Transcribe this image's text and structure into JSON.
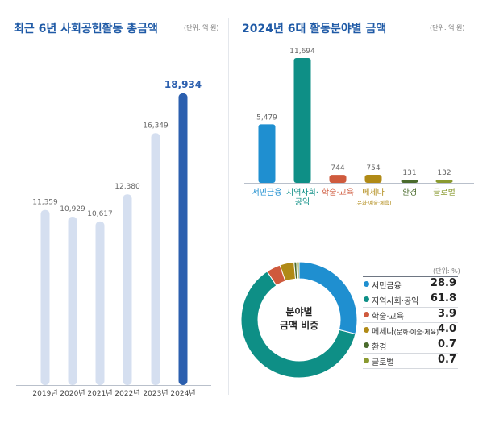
{
  "left": {
    "title": "최근 6년 사회공헌활동 총금액",
    "unit": "(단위: 억 원)"
  },
  "right": {
    "title": "2024년 6대 활동분야별 금액",
    "unit": "(단위: 억 원)"
  },
  "donut": {
    "center_line1": "분야별",
    "center_line2": "금액 비중",
    "unit": "(단위: %)"
  },
  "colors": {
    "title": "#1f5aa6",
    "pale_bar": "#d5dff0",
    "highlight_bar": "#2b5faf",
    "seomin": "#1f8fd0",
    "jiyeok": "#0e8f86",
    "haksul": "#cf5a3d",
    "mesena": "#b08a16",
    "hwangyeong": "#4a6b2c",
    "geulobeol": "#8a9a30"
  },
  "chart_data": [
    {
      "type": "bar",
      "title": "최근 6년 사회공헌활동 총금액",
      "categories": [
        "2019년",
        "2020년",
        "2021년",
        "2022년",
        "2023년",
        "2024년"
      ],
      "values": [
        11359,
        10929,
        10617,
        12380,
        16349,
        18934
      ],
      "value_labels": [
        "11,359",
        "10,929",
        "10,617",
        "12,380",
        "16,349",
        "18,934"
      ],
      "ylim": [
        0,
        19500
      ]
    },
    {
      "type": "bar",
      "title": "2024년 6대 활동분야별 금액",
      "categories": [
        "서민금융",
        "지역사회·공익",
        "학술·교육",
        "메세나",
        "환경",
        "글로벌"
      ],
      "category_lines": [
        [
          "서민금융"
        ],
        [
          "지역사회·",
          "공익"
        ],
        [
          "학술·교육"
        ],
        [
          "메세나"
        ],
        [
          "환경"
        ],
        [
          "글로벌"
        ]
      ],
      "category_sub": [
        "",
        "",
        "",
        "(문화·예술·체육)",
        "",
        ""
      ],
      "values": [
        5479,
        11694,
        744,
        754,
        131,
        132
      ],
      "value_labels": [
        "5,479",
        "11,694",
        "744",
        "754",
        "131",
        "132"
      ],
      "ylim": [
        0,
        11694
      ]
    },
    {
      "type": "pie",
      "title": "",
      "labels": [
        "서민금융",
        "지역사회·공익",
        "학술·교육",
        "메세나",
        "환경",
        "글로벌"
      ],
      "label_subs": [
        "",
        "",
        "",
        "(문화·예술·체육)",
        "",
        ""
      ],
      "values": [
        28.9,
        61.8,
        3.9,
        4.0,
        0.7,
        0.7
      ],
      "value_labels": [
        "28.9",
        "61.8",
        "3.9",
        "4.0",
        "0.7",
        "0.7"
      ]
    }
  ]
}
